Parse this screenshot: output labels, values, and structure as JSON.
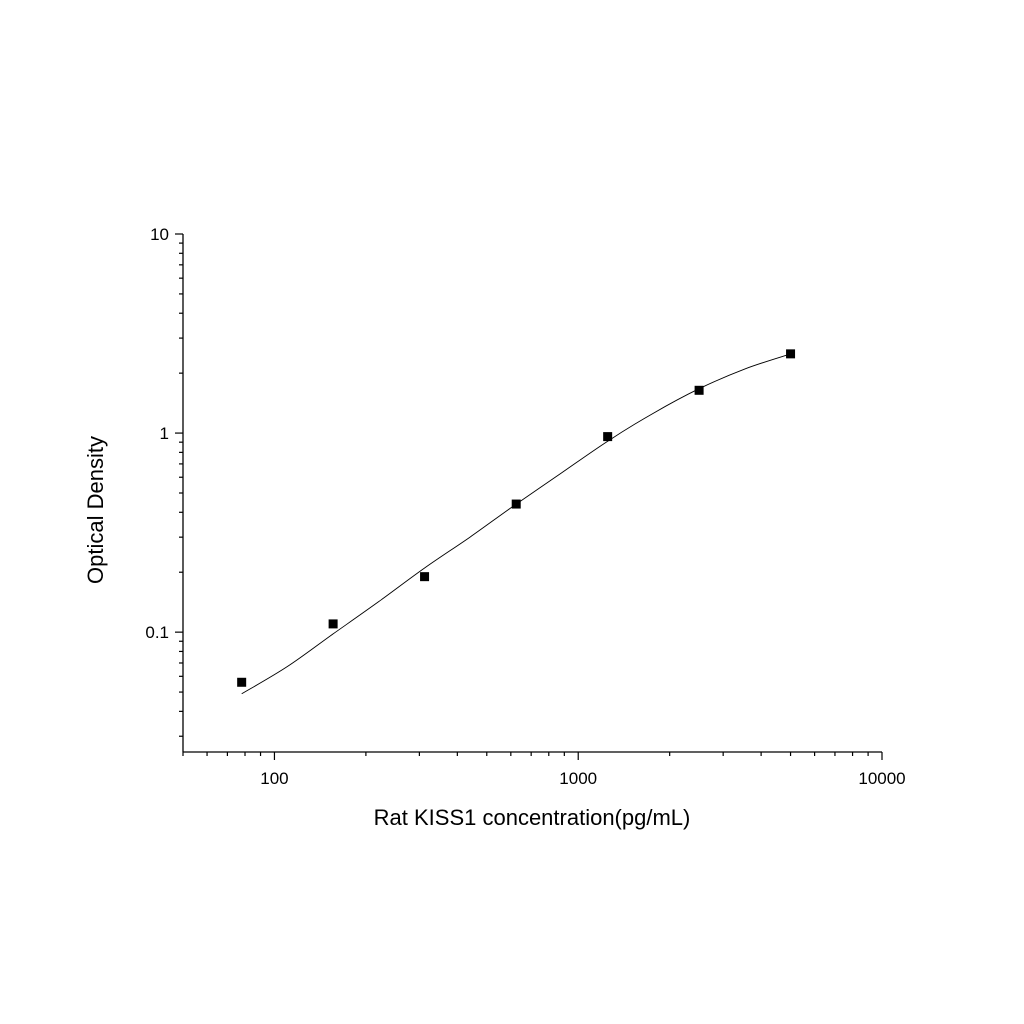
{
  "chart_data": {
    "type": "scatter",
    "title": "",
    "xlabel": "Rat KISS1 concentration(pg/mL)",
    "ylabel": "Optical Density",
    "xscale": "log",
    "yscale": "log",
    "xlim": [
      50,
      10000
    ],
    "ylim": [
      0.025,
      10
    ],
    "x_tick_labels": [
      "100",
      "1000",
      "10000"
    ],
    "y_tick_labels": [
      "0.1",
      "1",
      "10"
    ],
    "grid": false,
    "legend": "none",
    "series": [
      {
        "points": [
          {
            "x": 78,
            "y": 0.056
          },
          {
            "x": 156,
            "y": 0.11
          },
          {
            "x": 312,
            "y": 0.19
          },
          {
            "x": 625,
            "y": 0.44
          },
          {
            "x": 1250,
            "y": 0.96
          },
          {
            "x": 2500,
            "y": 1.64
          },
          {
            "x": 5000,
            "y": 2.5
          }
        ],
        "fit_curve": [
          {
            "x": 78,
            "y": 0.049
          },
          {
            "x": 110,
            "y": 0.067
          },
          {
            "x": 156,
            "y": 0.098
          },
          {
            "x": 220,
            "y": 0.142
          },
          {
            "x": 312,
            "y": 0.21
          },
          {
            "x": 440,
            "y": 0.3
          },
          {
            "x": 625,
            "y": 0.44
          },
          {
            "x": 880,
            "y": 0.63
          },
          {
            "x": 1250,
            "y": 0.91
          },
          {
            "x": 1770,
            "y": 1.26
          },
          {
            "x": 2500,
            "y": 1.67
          },
          {
            "x": 3540,
            "y": 2.1
          },
          {
            "x": 5000,
            "y": 2.5
          }
        ]
      }
    ]
  }
}
